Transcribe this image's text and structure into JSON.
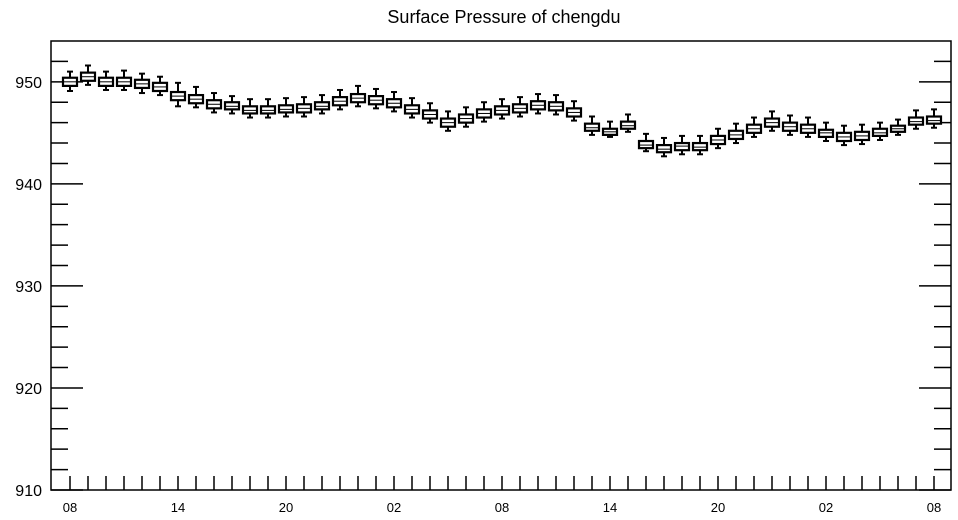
{
  "chart_data": {
    "type": "box",
    "title": "Surface Pressure of chengdu",
    "xlabel": "",
    "ylabel": "",
    "ylim": [
      910,
      954
    ],
    "grid": false,
    "legend": "none",
    "x_tick_labels": [
      "08",
      "14",
      "20",
      "02",
      "08",
      "14",
      "20",
      "02",
      "08"
    ],
    "y_tick_labels": [
      "910",
      "920",
      "930",
      "940",
      "950"
    ],
    "series": [
      {
        "boxes": [
          {
            "x": 0,
            "min": 949.1,
            "q1": 949.6,
            "median": 950.0,
            "q3": 950.4,
            "max": 951.0
          },
          {
            "x": 1,
            "min": 949.7,
            "q1": 950.1,
            "median": 950.5,
            "q3": 950.9,
            "max": 951.6
          },
          {
            "x": 2,
            "min": 949.2,
            "q1": 949.6,
            "median": 950.0,
            "q3": 950.4,
            "max": 951.0
          },
          {
            "x": 3,
            "min": 949.2,
            "q1": 949.6,
            "median": 950.0,
            "q3": 950.4,
            "max": 951.1
          },
          {
            "x": 4,
            "min": 948.9,
            "q1": 949.4,
            "median": 949.8,
            "q3": 950.2,
            "max": 950.8
          },
          {
            "x": 5,
            "min": 948.7,
            "q1": 949.1,
            "median": 949.5,
            "q3": 949.9,
            "max": 950.5
          },
          {
            "x": 6,
            "min": 947.6,
            "q1": 948.2,
            "median": 948.6,
            "q3": 949.0,
            "max": 949.9
          },
          {
            "x": 7,
            "min": 947.5,
            "q1": 947.9,
            "median": 948.3,
            "q3": 948.7,
            "max": 949.5
          },
          {
            "x": 8,
            "min": 947.0,
            "q1": 947.4,
            "median": 947.8,
            "q3": 948.2,
            "max": 948.9
          },
          {
            "x": 9,
            "min": 946.9,
            "q1": 947.3,
            "median": 947.6,
            "q3": 948.0,
            "max": 948.6
          },
          {
            "x": 10,
            "min": 946.5,
            "q1": 946.9,
            "median": 947.2,
            "q3": 947.6,
            "max": 948.3
          },
          {
            "x": 11,
            "min": 946.5,
            "q1": 946.9,
            "median": 947.2,
            "q3": 947.6,
            "max": 948.3
          },
          {
            "x": 12,
            "min": 946.6,
            "q1": 947.0,
            "median": 947.3,
            "q3": 947.7,
            "max": 948.4
          },
          {
            "x": 13,
            "min": 946.6,
            "q1": 947.0,
            "median": 947.4,
            "q3": 947.8,
            "max": 948.5
          },
          {
            "x": 14,
            "min": 946.9,
            "q1": 947.3,
            "median": 947.6,
            "q3": 948.0,
            "max": 948.7
          },
          {
            "x": 15,
            "min": 947.3,
            "q1": 947.7,
            "median": 948.1,
            "q3": 948.5,
            "max": 949.2
          },
          {
            "x": 16,
            "min": 947.6,
            "q1": 948.0,
            "median": 948.4,
            "q3": 948.8,
            "max": 949.6
          },
          {
            "x": 17,
            "min": 947.4,
            "q1": 947.8,
            "median": 948.2,
            "q3": 948.6,
            "max": 949.3
          },
          {
            "x": 18,
            "min": 947.1,
            "q1": 947.5,
            "median": 947.9,
            "q3": 948.3,
            "max": 949.0
          },
          {
            "x": 19,
            "min": 946.5,
            "q1": 946.9,
            "median": 947.3,
            "q3": 947.7,
            "max": 948.4
          },
          {
            "x": 20,
            "min": 946.0,
            "q1": 946.4,
            "median": 946.8,
            "q3": 947.2,
            "max": 947.9
          },
          {
            "x": 21,
            "min": 945.2,
            "q1": 945.6,
            "median": 946.0,
            "q3": 946.4,
            "max": 947.1
          },
          {
            "x": 22,
            "min": 945.6,
            "q1": 946.0,
            "median": 946.4,
            "q3": 946.8,
            "max": 947.5
          },
          {
            "x": 23,
            "min": 946.1,
            "q1": 946.5,
            "median": 946.9,
            "q3": 947.3,
            "max": 948.0
          },
          {
            "x": 24,
            "min": 946.4,
            "q1": 946.8,
            "median": 947.2,
            "q3": 947.6,
            "max": 948.3
          },
          {
            "x": 25,
            "min": 946.6,
            "q1": 947.0,
            "median": 947.4,
            "q3": 947.8,
            "max": 948.5
          },
          {
            "x": 26,
            "min": 946.9,
            "q1": 947.3,
            "median": 947.7,
            "q3": 948.1,
            "max": 948.8
          },
          {
            "x": 27,
            "min": 946.8,
            "q1": 947.2,
            "median": 947.6,
            "q3": 948.0,
            "max": 948.7
          },
          {
            "x": 28,
            "min": 946.2,
            "q1": 946.6,
            "median": 947.0,
            "q3": 947.4,
            "max": 948.1
          },
          {
            "x": 29,
            "min": 944.8,
            "q1": 945.2,
            "median": 945.5,
            "q3": 945.9,
            "max": 946.6
          },
          {
            "x": 30,
            "min": 944.6,
            "q1": 944.8,
            "median": 945.1,
            "q3": 945.4,
            "max": 946.1
          },
          {
            "x": 31,
            "min": 945.1,
            "q1": 945.4,
            "median": 945.7,
            "q3": 946.1,
            "max": 946.8
          },
          {
            "x": 32,
            "min": 943.2,
            "q1": 943.5,
            "median": 943.8,
            "q3": 944.2,
            "max": 944.9
          },
          {
            "x": 33,
            "min": 942.7,
            "q1": 943.1,
            "median": 943.4,
            "q3": 943.8,
            "max": 944.5
          },
          {
            "x": 34,
            "min": 942.9,
            "q1": 943.3,
            "median": 943.7,
            "q3": 944.0,
            "max": 944.7
          },
          {
            "x": 35,
            "min": 942.9,
            "q1": 943.3,
            "median": 943.6,
            "q3": 944.0,
            "max": 944.7
          },
          {
            "x": 36,
            "min": 943.5,
            "q1": 943.9,
            "median": 944.3,
            "q3": 944.7,
            "max": 945.4
          },
          {
            "x": 37,
            "min": 944.0,
            "q1": 944.4,
            "median": 944.8,
            "q3": 945.2,
            "max": 945.9
          },
          {
            "x": 38,
            "min": 944.6,
            "q1": 945.0,
            "median": 945.4,
            "q3": 945.8,
            "max": 946.5
          },
          {
            "x": 39,
            "min": 945.2,
            "q1": 945.6,
            "median": 946.0,
            "q3": 946.4,
            "max": 947.1
          },
          {
            "x": 40,
            "min": 944.8,
            "q1": 945.2,
            "median": 945.6,
            "q3": 946.0,
            "max": 946.7
          },
          {
            "x": 41,
            "min": 944.6,
            "q1": 945.0,
            "median": 945.4,
            "q3": 945.8,
            "max": 946.5
          },
          {
            "x": 42,
            "min": 944.2,
            "q1": 944.6,
            "median": 945.0,
            "q3": 945.3,
            "max": 946.0
          },
          {
            "x": 43,
            "min": 943.8,
            "q1": 944.2,
            "median": 944.6,
            "q3": 945.0,
            "max": 945.7
          },
          {
            "x": 44,
            "min": 943.9,
            "q1": 944.3,
            "median": 944.7,
            "q3": 945.1,
            "max": 945.8
          },
          {
            "x": 45,
            "min": 944.3,
            "q1": 944.7,
            "median": 945.0,
            "q3": 945.4,
            "max": 946.0
          },
          {
            "x": 46,
            "min": 944.8,
            "q1": 945.1,
            "median": 945.4,
            "q3": 945.7,
            "max": 946.3
          },
          {
            "x": 47,
            "min": 945.4,
            "q1": 945.8,
            "median": 946.1,
            "q3": 946.5,
            "max": 947.2
          },
          {
            "x": 48,
            "min": 945.5,
            "q1": 945.9,
            "median": 946.2,
            "q3": 946.6,
            "max": 947.3
          }
        ]
      }
    ]
  }
}
